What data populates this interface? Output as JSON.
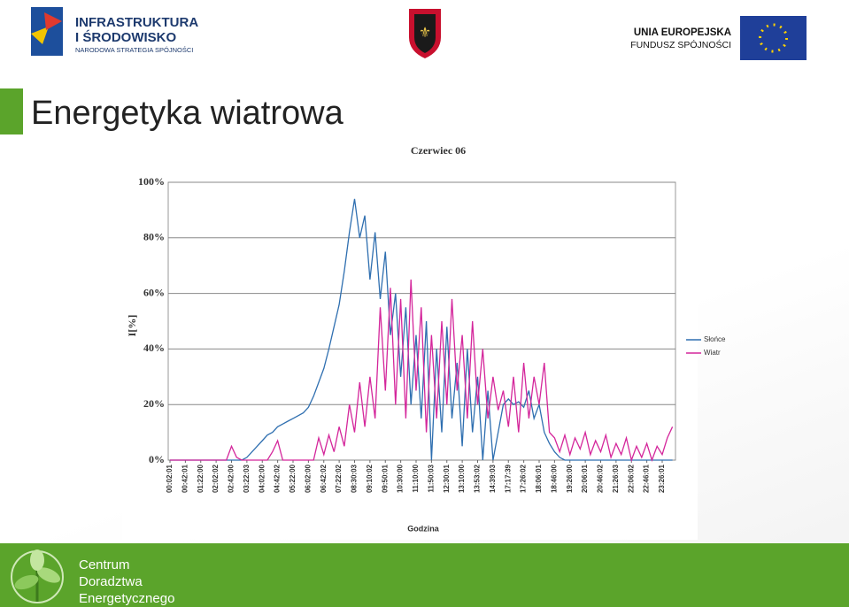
{
  "header": {
    "logo_left": [
      "INFRASTRUKTURA",
      "I ŚRODOWISKO",
      "NARODOWA STRATEGIA SPÓJNOŚCI"
    ],
    "logo_right": [
      "UNIA EUROPEJSKA",
      "FUNDUSZ SPÓJNOŚCI"
    ]
  },
  "slide_title": "Energetyka wiatrowa",
  "footer": [
    "Centrum",
    "Doradztwa",
    "Energetycznego"
  ],
  "chart_data": {
    "type": "line",
    "title": "Czerwiec 06",
    "x_label": "Godzina",
    "y_label": "I[%]",
    "categories": [
      "00:02:01",
      null,
      null,
      "00:42:01",
      null,
      null,
      "01:22:00",
      null,
      null,
      "02:02:02",
      null,
      null,
      "02:42:00",
      null,
      null,
      "03:22:03",
      null,
      null,
      "04:02:00",
      null,
      null,
      "04:42:02",
      null,
      null,
      "05:22:00",
      null,
      null,
      "06:02:00",
      null,
      null,
      "06:42:02",
      null,
      null,
      "07:22:02",
      null,
      null,
      "08:30:03",
      null,
      null,
      "09:10:02",
      null,
      null,
      "09:50:01",
      null,
      null,
      "10:30:00",
      null,
      null,
      "11:10:00",
      null,
      null,
      "11:50:03",
      null,
      null,
      "12:30:01",
      null,
      null,
      "13:10:00",
      null,
      null,
      "13:53:02",
      null,
      null,
      "14:39:03",
      null,
      null,
      "17:17:39",
      null,
      null,
      "17:26:02",
      null,
      null,
      "18:06:01",
      null,
      null,
      "18:46:00",
      null,
      null,
      "19:26:00",
      null,
      null,
      "20:06:01",
      null,
      null,
      "20:46:02",
      null,
      null,
      "21:26:03",
      null,
      null,
      "22:06:02",
      null,
      null,
      "22:46:01",
      null,
      null,
      "23:26:01",
      null,
      null
    ],
    "series": [
      {
        "name": "Słońce",
        "color": "#2f6fb0",
        "values": [
          0,
          0,
          0,
          0,
          0,
          0,
          0,
          0,
          0,
          0,
          0,
          0,
          0,
          0,
          0,
          1,
          3,
          5,
          7,
          9,
          10,
          12,
          13,
          14,
          15,
          16,
          17,
          19,
          23,
          28,
          33,
          40,
          48,
          56,
          68,
          82,
          94,
          80,
          88,
          65,
          82,
          58,
          75,
          45,
          60,
          30,
          55,
          20,
          45,
          15,
          50,
          0,
          40,
          10,
          48,
          15,
          35,
          5,
          40,
          10,
          30,
          0,
          25,
          0,
          10,
          20,
          22,
          20,
          21,
          19,
          25,
          15,
          20,
          10,
          6,
          3,
          1,
          0,
          0,
          0,
          0,
          0,
          0,
          0,
          0,
          0,
          0,
          0,
          0,
          0,
          0,
          0,
          0,
          0,
          0,
          0,
          0,
          0,
          0
        ]
      },
      {
        "name": "Wiatr",
        "color": "#d4269b",
        "values": [
          0,
          0,
          0,
          0,
          0,
          0,
          0,
          0,
          0,
          0,
          0,
          0,
          5,
          1,
          0,
          0,
          0,
          0,
          0,
          0,
          3,
          7,
          0,
          0,
          0,
          0,
          0,
          0,
          0,
          8,
          2,
          9,
          3,
          12,
          5,
          20,
          10,
          28,
          12,
          30,
          15,
          55,
          25,
          62,
          20,
          58,
          15,
          65,
          25,
          55,
          10,
          45,
          15,
          50,
          20,
          58,
          25,
          45,
          15,
          50,
          20,
          40,
          15,
          30,
          18,
          25,
          12,
          30,
          10,
          35,
          15,
          30,
          20,
          35,
          10,
          8,
          3,
          9,
          2,
          8,
          4,
          10,
          2,
          7,
          3,
          9,
          1,
          6,
          2,
          8,
          0,
          5,
          1,
          6,
          0,
          5,
          2,
          8,
          12
        ]
      }
    ],
    "ylim": [
      0,
      100
    ],
    "yticks": [
      {
        "value": 0,
        "label": "0%"
      },
      {
        "value": 20,
        "label": "20%"
      },
      {
        "value": 40,
        "label": "40%"
      },
      {
        "value": 60,
        "label": "60%"
      },
      {
        "value": 80,
        "label": "80%"
      },
      {
        "value": 100,
        "label": "100%"
      }
    ],
    "grid": true,
    "legend": "right"
  }
}
